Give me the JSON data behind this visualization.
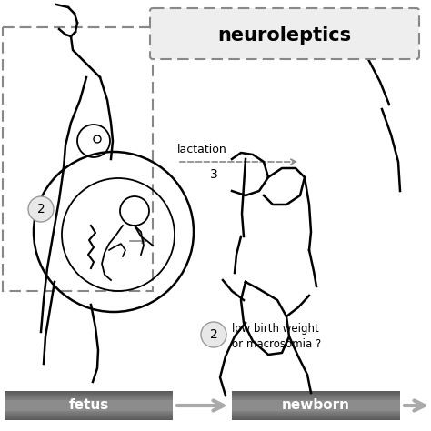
{
  "bg_color": "#ffffff",
  "title": "neuroleptics",
  "label_lactation": "lactation",
  "label_3": "3",
  "label_2a": "2",
  "label_2b": "2",
  "label_low_birth1": "low birth weight",
  "label_low_birth2": "or macrosomia ?",
  "label_fetus": "fetus",
  "label_newborn": "newborn",
  "gray_color": "#888888",
  "dark_gray": "#555555",
  "light_gray": "#aaaaaa",
  "arrow_gray": "#999999"
}
